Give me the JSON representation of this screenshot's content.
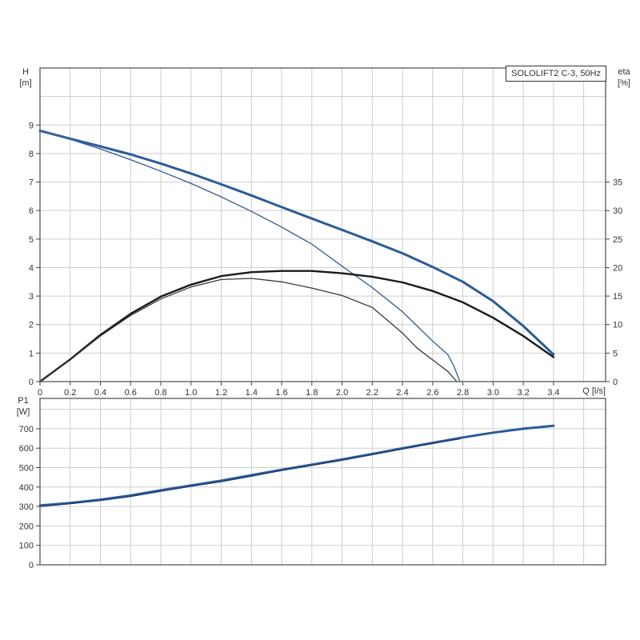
{
  "title_box": {
    "label": "SOLOLIFT2 C-3, 50Hz"
  },
  "labels": {
    "h_line1": "H",
    "h_line2": "[m]",
    "eta_line1": "eta",
    "eta_line2": "[%]",
    "q_axis": "Q [l/s]",
    "p1_line1": "P1",
    "p1_line2": "[W]"
  },
  "chart_data": [
    {
      "type": "line",
      "title": "SOLOLIFT2 C-3, 50Hz",
      "xlabel": "Q [l/s]",
      "ylabel_left": "H [m]",
      "ylabel_right": "eta [%]",
      "xlim": [
        0,
        3.745
      ],
      "ylim_left": [
        0,
        11
      ],
      "ylim_right": [
        0,
        55
      ],
      "grid": true,
      "legend_position": "none",
      "x_grid": [
        0.2,
        0.4,
        0.6,
        0.8,
        1.0,
        1.2,
        1.4,
        1.6,
        1.8,
        2.0,
        2.2,
        2.4,
        2.6,
        2.8,
        3.0,
        3.2,
        3.4,
        3.6
      ],
      "y_grid_left": [
        1,
        2,
        3,
        4,
        5,
        6,
        7,
        8,
        9,
        10
      ],
      "x_ticks": [
        0,
        0.2,
        0.4,
        0.6,
        0.8,
        1.0,
        1.2,
        1.4,
        1.6,
        1.8,
        2.0,
        2.2,
        2.4,
        2.6,
        2.8,
        3.0,
        3.2,
        3.4
      ],
      "x_tick_labels": [
        "0",
        "0.2",
        "0.4",
        "0.6",
        "0.8",
        "1.0",
        "1.2",
        "1.4",
        "1.6",
        "1.8",
        "2.0",
        "2.2",
        "2.4",
        "2.6",
        "2.8",
        "3.0",
        "3.2",
        "3.4"
      ],
      "y_ticks_left": [
        0,
        1,
        2,
        3,
        4,
        5,
        6,
        7,
        8,
        9
      ],
      "y_ticks_right": [
        0,
        5,
        10,
        15,
        20,
        25,
        30,
        35
      ],
      "series": [
        {
          "name": "head-curve-main",
          "axis": "left",
          "color": "#2a5c99",
          "width": 3,
          "points": [
            [
              0,
              8.8
            ],
            [
              0.2,
              8.52
            ],
            [
              0.4,
              8.25
            ],
            [
              0.6,
              7.97
            ],
            [
              0.8,
              7.65
            ],
            [
              1.0,
              7.3
            ],
            [
              1.2,
              6.92
            ],
            [
              1.4,
              6.53
            ],
            [
              1.6,
              6.12
            ],
            [
              1.8,
              5.72
            ],
            [
              2.0,
              5.32
            ],
            [
              2.2,
              4.92
            ],
            [
              2.4,
              4.5
            ],
            [
              2.6,
              4.02
            ],
            [
              2.8,
              3.5
            ],
            [
              3.0,
              2.82
            ],
            [
              3.2,
              1.95
            ],
            [
              3.4,
              0.95
            ]
          ]
        },
        {
          "name": "head-curve-secondary",
          "axis": "left",
          "color": "#3e649a",
          "width": 1.4,
          "points": [
            [
              0,
              8.8
            ],
            [
              0.2,
              8.5
            ],
            [
              0.4,
              8.16
            ],
            [
              0.6,
              7.78
            ],
            [
              0.8,
              7.38
            ],
            [
              1.0,
              6.95
            ],
            [
              1.2,
              6.48
            ],
            [
              1.4,
              5.97
            ],
            [
              1.6,
              5.42
            ],
            [
              1.8,
              4.82
            ],
            [
              2.0,
              4.05
            ],
            [
              2.2,
              3.3
            ],
            [
              2.4,
              2.45
            ],
            [
              2.6,
              1.42
            ],
            [
              2.7,
              0.95
            ],
            [
              2.74,
              0.55
            ],
            [
              2.78,
              0
            ]
          ]
        },
        {
          "name": "eta-curve-main",
          "axis": "right",
          "color": "#1a1a1a",
          "width": 2.4,
          "points": [
            [
              0,
              0
            ],
            [
              0.2,
              3.9
            ],
            [
              0.4,
              8.2
            ],
            [
              0.6,
              11.9
            ],
            [
              0.8,
              14.9
            ],
            [
              1.0,
              17.0
            ],
            [
              1.2,
              18.5
            ],
            [
              1.4,
              19.2
            ],
            [
              1.6,
              19.4
            ],
            [
              1.8,
              19.4
            ],
            [
              2.0,
              19.0
            ],
            [
              2.2,
              18.4
            ],
            [
              2.4,
              17.4
            ],
            [
              2.6,
              15.9
            ],
            [
              2.8,
              13.9
            ],
            [
              3.0,
              11.2
            ],
            [
              3.2,
              8.0
            ],
            [
              3.4,
              4.3
            ]
          ]
        },
        {
          "name": "eta-curve-secondary",
          "axis": "right",
          "color": "#3a3a3a",
          "width": 1.3,
          "points": [
            [
              0,
              0
            ],
            [
              0.2,
              3.8
            ],
            [
              0.4,
              8.0
            ],
            [
              0.6,
              11.6
            ],
            [
              0.8,
              14.5
            ],
            [
              1.0,
              16.6
            ],
            [
              1.2,
              17.9
            ],
            [
              1.4,
              18.1
            ],
            [
              1.6,
              17.5
            ],
            [
              1.8,
              16.4
            ],
            [
              2.0,
              15.1
            ],
            [
              2.2,
              13.0
            ],
            [
              2.4,
              8.5
            ],
            [
              2.5,
              5.8
            ],
            [
              2.6,
              3.8
            ],
            [
              2.7,
              1.8
            ],
            [
              2.76,
              0
            ]
          ]
        }
      ]
    },
    {
      "type": "line",
      "title": "",
      "xlabel": "Q [l/s]",
      "ylabel_left": "P1 [W]",
      "xlim": [
        0,
        3.745
      ],
      "ylim_left": [
        0,
        856
      ],
      "grid": true,
      "legend_position": "none",
      "x_grid": [
        0.2,
        0.4,
        0.6,
        0.8,
        1.0,
        1.2,
        1.4,
        1.6,
        1.8,
        2.0,
        2.2,
        2.4,
        2.6,
        2.8,
        3.0,
        3.2,
        3.4,
        3.6
      ],
      "y_grid_left": [
        100,
        200,
        300,
        400,
        500,
        600,
        700,
        800
      ],
      "x_ticks": [],
      "x_tick_labels": [],
      "y_ticks_left": [
        0,
        100,
        200,
        300,
        400,
        500,
        600,
        700
      ],
      "series": [
        {
          "name": "p1-curve-main",
          "axis": "left",
          "color": "#2a5c99",
          "width": 3,
          "points": [
            [
              0,
              305
            ],
            [
              0.2,
              318
            ],
            [
              0.4,
              335
            ],
            [
              0.6,
              357
            ],
            [
              0.8,
              383
            ],
            [
              1.0,
              408
            ],
            [
              1.2,
              433
            ],
            [
              1.4,
              461
            ],
            [
              1.6,
              489
            ],
            [
              1.8,
              515
            ],
            [
              2.0,
              542
            ],
            [
              2.2,
              570
            ],
            [
              2.4,
              599
            ],
            [
              2.6,
              627
            ],
            [
              2.8,
              655
            ],
            [
              3.0,
              680
            ],
            [
              3.2,
              700
            ],
            [
              3.4,
              715
            ]
          ]
        },
        {
          "name": "p1-curve-secondary",
          "axis": "left",
          "color": "#1d3f6e",
          "width": 1.4,
          "points": [
            [
              0,
              300
            ],
            [
              0.2,
              315
            ],
            [
              0.4,
              331
            ],
            [
              0.6,
              352
            ],
            [
              0.8,
              378
            ],
            [
              1.0,
              404
            ],
            [
              1.2,
              428
            ],
            [
              1.4,
              456
            ],
            [
              1.6,
              485
            ],
            [
              1.8,
              512
            ],
            [
              2.0,
              538
            ],
            [
              2.2,
              567
            ],
            [
              2.4,
              596
            ],
            [
              2.6,
              625
            ],
            [
              2.78,
              648
            ]
          ]
        }
      ]
    }
  ],
  "style_colors": {
    "grid": "#cdcdcd",
    "border": "#58585a",
    "tick": "#444444",
    "text": "#333333",
    "curve_blue": "#2a5c99",
    "curve_black": "#1a1a1a"
  }
}
